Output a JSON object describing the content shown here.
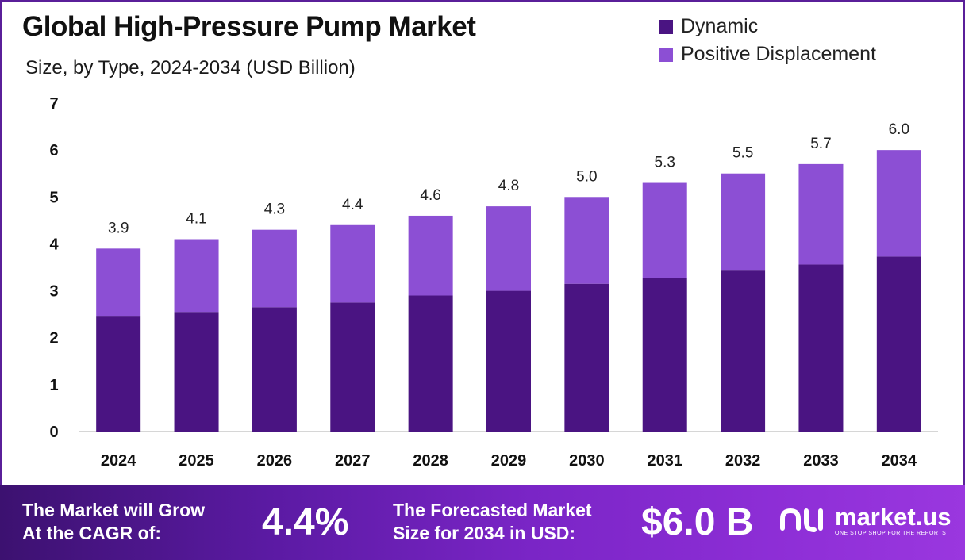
{
  "header": {
    "title": "Global High-Pressure Pump Market",
    "subtitle": "Size, by Type, 2024-2034 (USD Billion)"
  },
  "legend": [
    {
      "label": "Dynamic",
      "color": "#4a1482"
    },
    {
      "label": "Positive Displacement",
      "color": "#8c4fd4"
    }
  ],
  "chart_data": {
    "type": "bar",
    "stacked": true,
    "title": "Global High-Pressure Pump Market",
    "subtitle": "Size, by Type, 2024-2034 (USD Billion)",
    "xlabel": "",
    "ylabel": "",
    "ylim": [
      0,
      7
    ],
    "yticks": [
      0,
      1,
      2,
      3,
      4,
      5,
      6,
      7
    ],
    "categories": [
      "2024",
      "2025",
      "2026",
      "2027",
      "2028",
      "2029",
      "2030",
      "2031",
      "2032",
      "2033",
      "2034"
    ],
    "series": [
      {
        "name": "Dynamic",
        "color": "#4a1482",
        "values": [
          2.45,
          2.55,
          2.65,
          2.75,
          2.9,
          3.0,
          3.15,
          3.28,
          3.43,
          3.56,
          3.73
        ]
      },
      {
        "name": "Positive Displacement",
        "color": "#8c4fd4",
        "values": [
          1.45,
          1.55,
          1.65,
          1.65,
          1.7,
          1.8,
          1.85,
          2.02,
          2.07,
          2.14,
          2.27
        ]
      }
    ],
    "totals": [
      3.9,
      4.1,
      4.3,
      4.4,
      4.6,
      4.8,
      5.0,
      5.3,
      5.5,
      5.7,
      6.0
    ],
    "total_labels": [
      "3.9",
      "4.1",
      "4.3",
      "4.4",
      "4.6",
      "4.8",
      "5.0",
      "5.3",
      "5.5",
      "5.7",
      "6.0"
    ],
    "grid": false,
    "legend_position": "top-right"
  },
  "footer": {
    "cagr_label_line1": "The Market will Grow",
    "cagr_label_line2": "At the CAGR of:",
    "cagr_value": "4.4%",
    "forecast_label_line1": "The Forecasted Market",
    "forecast_label_line2": "Size for 2034 in USD:",
    "forecast_value": "$6.0 B",
    "brand_name": "market.us",
    "brand_tagline": "ONE STOP SHOP FOR THE REPORTS",
    "brand_icon": "market-us-logo-icon"
  }
}
